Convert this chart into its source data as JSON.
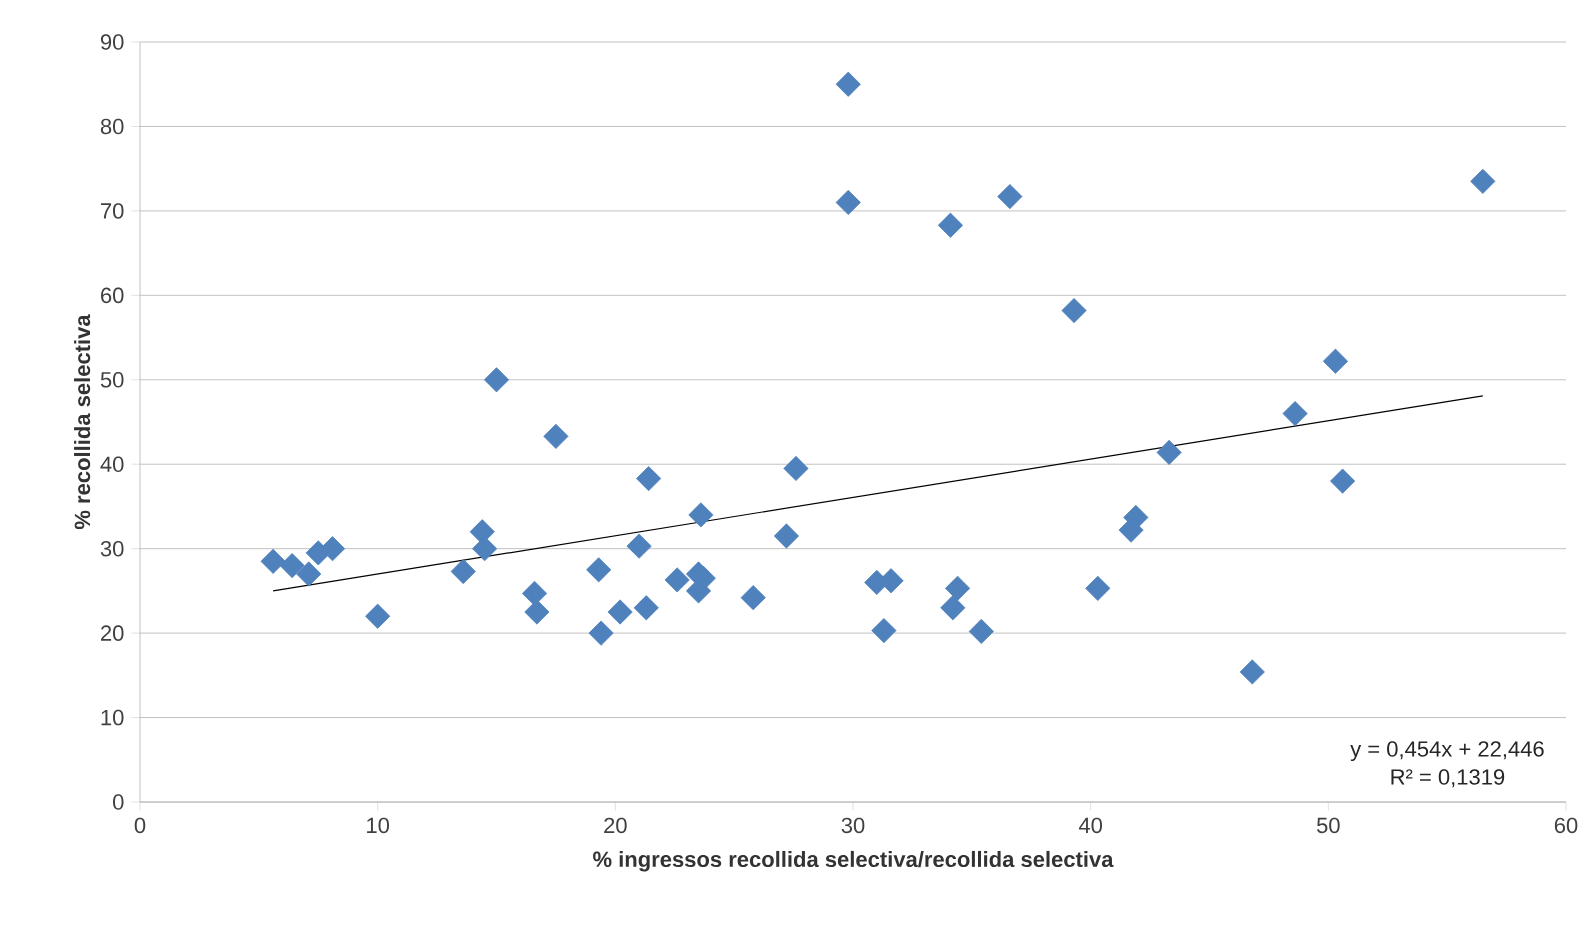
{
  "chart_data": {
    "type": "scatter",
    "xlabel": "% ingressos recollida selectiva/recollida selectiva",
    "ylabel": "% recollida selectiva",
    "xlim": [
      0,
      60
    ],
    "xticks": [
      0,
      10,
      20,
      30,
      40,
      50,
      60
    ],
    "ylim": [
      0,
      90
    ],
    "yticks": [
      0,
      10,
      20,
      30,
      40,
      50,
      60,
      70,
      80,
      90
    ],
    "grid": "y",
    "marker": "diamond",
    "annotations": [
      "y = 0,454x + 22,446",
      "R² = 0,1319"
    ],
    "series": [
      {
        "color": "#4f81bd",
        "x": [
          5.6,
          6.4,
          7.1,
          7.5,
          8.1,
          10,
          13.6,
          14.4,
          14.5,
          15,
          16.6,
          16.7,
          17.5,
          19.3,
          19.4,
          20.2,
          21,
          21.3,
          21.4,
          22.6,
          23.5,
          23.5,
          23.6,
          23.7,
          25.8,
          27.2,
          27.6,
          29.8,
          29.8,
          31,
          31.3,
          31.6,
          34.1,
          34.2,
          34.4,
          35.4,
          36.6,
          39.3,
          40.3,
          41.7,
          41.9,
          43.3,
          46.8,
          48.6,
          50.3,
          50.6,
          56.5
        ],
        "values": [
          28.5,
          28,
          27,
          29.5,
          30,
          22,
          27.3,
          32,
          30,
          50,
          24.7,
          22.5,
          43.3,
          27.5,
          20,
          22.5,
          30.3,
          23,
          38.3,
          26.3,
          25,
          27,
          34,
          26.5,
          24.2,
          31.5,
          39.5,
          85,
          71,
          26,
          20.3,
          26.2,
          68.3,
          23,
          25.3,
          20.2,
          71.7,
          58.2,
          25.3,
          32.2,
          33.7,
          41.4,
          15.4,
          46,
          52.2,
          38,
          73.5
        ]
      },
      {
        "type": "line",
        "color": "#000000",
        "marker": "none",
        "x": [
          5.6,
          56.5
        ],
        "values": [
          25,
          48.1
        ]
      }
    ]
  }
}
